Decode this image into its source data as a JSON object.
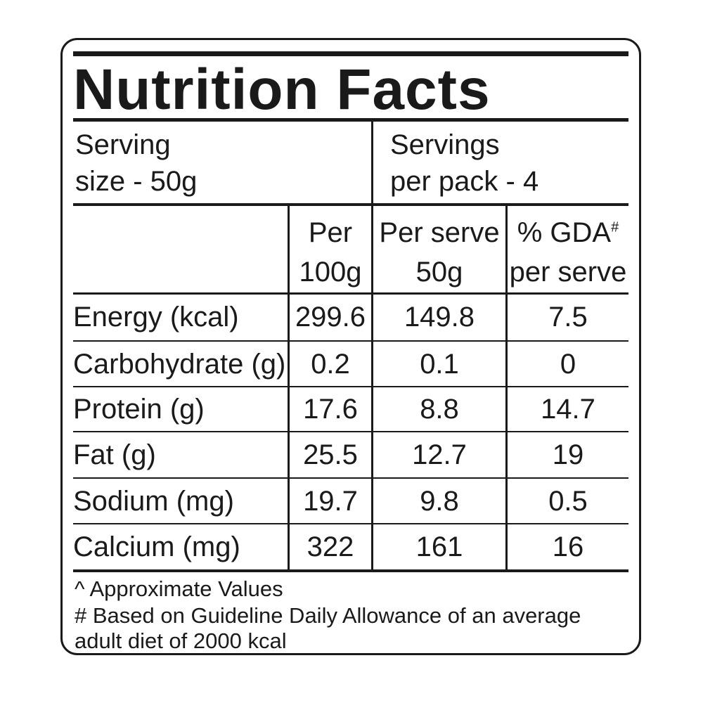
{
  "label": {
    "title": "Nutrition Facts",
    "serving": {
      "line1": "Serving",
      "line2": "size - 50g"
    },
    "servings_per_pack": {
      "line1": "Servings",
      "line2": "per pack - 4"
    },
    "columns": {
      "per_100g": {
        "line1": "Per",
        "line2": "100g"
      },
      "per_serve": {
        "line1": "Per serve",
        "line2": "50g"
      },
      "gda": {
        "line1": "% GDA",
        "mark": "#",
        "line2": "per serve"
      }
    },
    "rows": [
      {
        "nutrient": "Energy (kcal)",
        "per_100g": "299.6",
        "per_serve": "149.8",
        "gda": "7.5"
      },
      {
        "nutrient": "Carbohydrate (g)",
        "per_100g": "0.2",
        "per_serve": "0.1",
        "gda": "0"
      },
      {
        "nutrient": "Protein (g)",
        "per_100g": "17.6",
        "per_serve": "8.8",
        "gda": "14.7"
      },
      {
        "nutrient": "Fat (g)",
        "per_100g": "25.5",
        "per_serve": "12.7",
        "gda": "19"
      },
      {
        "nutrient": "Sodium (mg)",
        "per_100g": "19.7",
        "per_serve": "9.8",
        "gda": "0.5"
      },
      {
        "nutrient": "Calcium (mg)",
        "per_100g": "322",
        "per_serve": "161",
        "gda": "16"
      }
    ],
    "footnotes": {
      "approx": "^ Approximate Values",
      "gda_line1": "# Based on Guideline Daily Allowance of an average",
      "gda_line2": "adult diet of 2000 kcal"
    }
  }
}
